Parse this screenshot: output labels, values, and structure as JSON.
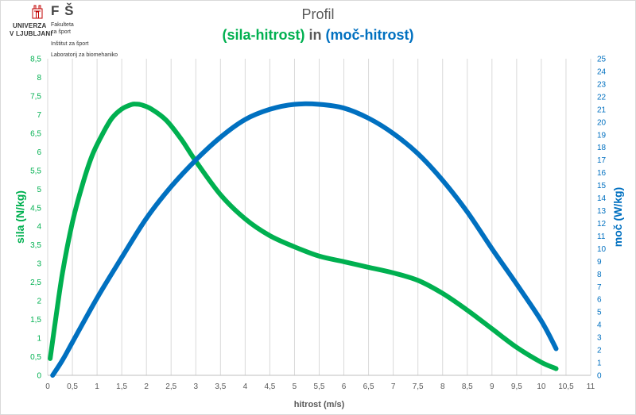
{
  "logo": {
    "university_line1": "UNIVERZA",
    "university_line2": "V LJUBLJANI",
    "faculty_abbr": "F Š",
    "faculty_line1": "Fakulteta",
    "faculty_line2": "za šport",
    "institute": "Inštitut za šport",
    "laboratory": "Laboratorij za biomehaniko",
    "crest_icon": "university-crest-icon",
    "crest_color": "#c00000"
  },
  "colors": {
    "force": "#00b050",
    "power": "#0070c0",
    "text": "#595959",
    "grid": "#d9d9d9"
  },
  "chart_data": {
    "type": "line",
    "title": "Profil",
    "subtitle_part1": "(sila-hitrost)",
    "subtitle_joiner": " in ",
    "subtitle_part2": "(moč-hitrost)",
    "xlabel": "hitrost (m/s)",
    "ylabel_left": "sila (N/kg)",
    "ylabel_right": "moč (W/kg)",
    "xlim": [
      0,
      11
    ],
    "ylim_left": [
      0,
      8.5
    ],
    "ylim_right": [
      0,
      25
    ],
    "x_ticks": [
      "0",
      "0,5",
      "1",
      "1,5",
      "2",
      "2,5",
      "3",
      "3,5",
      "4",
      "4,5",
      "5",
      "5,5",
      "6",
      "6,5",
      "7",
      "7,5",
      "8",
      "8,5",
      "9",
      "9,5",
      "10",
      "10,5",
      "11"
    ],
    "y_left_ticks": [
      "0",
      "0,5",
      "1",
      "1,5",
      "2",
      "2,5",
      "3",
      "3,5",
      "4",
      "4,5",
      "5",
      "5,5",
      "6",
      "6,5",
      "7",
      "7,5",
      "8",
      "8,5"
    ],
    "y_right_ticks": [
      "0",
      "1",
      "2",
      "3",
      "4",
      "5",
      "6",
      "7",
      "8",
      "9",
      "10",
      "11",
      "12",
      "13",
      "14",
      "15",
      "16",
      "17",
      "18",
      "19",
      "20",
      "21",
      "22",
      "23",
      "24",
      "25"
    ],
    "grid": "vertical",
    "series": [
      {
        "name": "sila",
        "axis": "left",
        "x": [
          0.05,
          0.15,
          0.3,
          0.5,
          0.7,
          0.9,
          1.1,
          1.3,
          1.5,
          1.7,
          1.8,
          1.9,
          2.1,
          2.4,
          2.7,
          3.0,
          3.5,
          4.0,
          4.5,
          5.0,
          5.5,
          6.0,
          6.5,
          7.0,
          7.5,
          8.0,
          8.5,
          9.0,
          9.5,
          10.0,
          10.3
        ],
        "y": [
          0.45,
          1.4,
          2.75,
          4.1,
          5.1,
          5.9,
          6.45,
          6.9,
          7.15,
          7.27,
          7.28,
          7.26,
          7.15,
          6.85,
          6.35,
          5.75,
          4.85,
          4.2,
          3.75,
          3.45,
          3.2,
          3.05,
          2.9,
          2.75,
          2.55,
          2.2,
          1.75,
          1.25,
          0.75,
          0.35,
          0.18
        ]
      },
      {
        "name": "moč",
        "axis": "right",
        "x": [
          0.1,
          0.3,
          0.5,
          1.0,
          1.5,
          2.0,
          2.5,
          3.0,
          3.5,
          4.0,
          4.5,
          5.0,
          5.5,
          6.0,
          6.5,
          7.0,
          7.5,
          8.0,
          8.5,
          9.0,
          9.5,
          10.0,
          10.3
        ],
        "y": [
          0.0,
          1.2,
          2.6,
          6.1,
          9.3,
          12.4,
          14.9,
          17.0,
          18.8,
          20.2,
          21.0,
          21.4,
          21.4,
          21.1,
          20.3,
          19.1,
          17.5,
          15.4,
          12.9,
          10.0,
          7.2,
          4.3,
          2.1
        ]
      }
    ]
  }
}
